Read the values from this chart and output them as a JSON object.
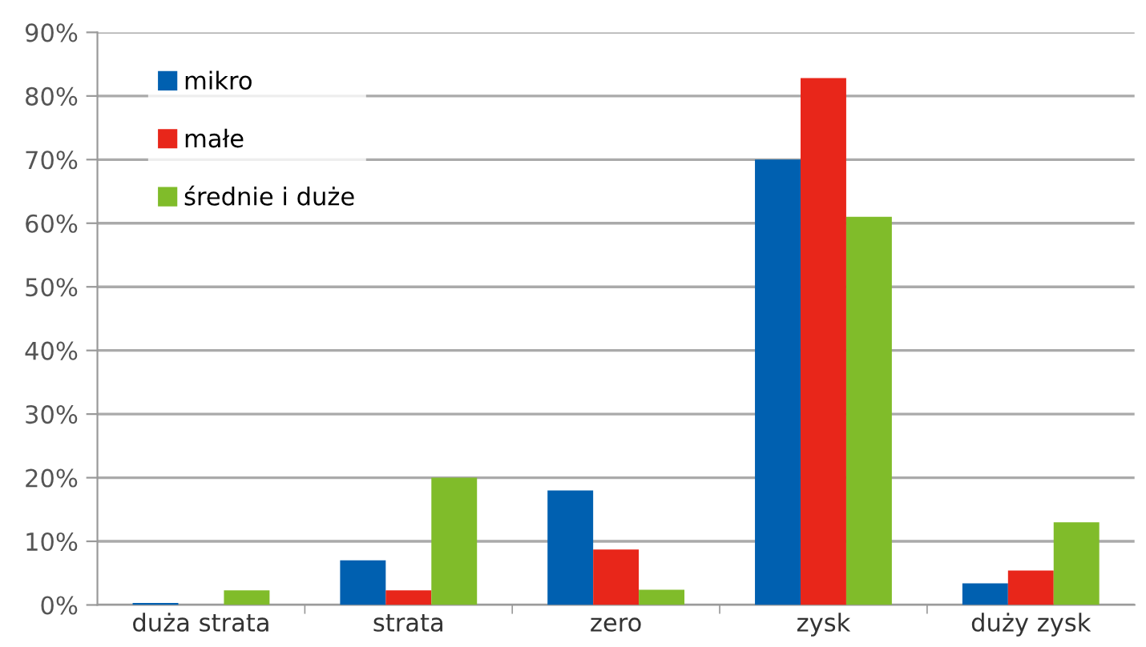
{
  "chart_data": {
    "type": "bar",
    "categories": [
      "duża strata",
      "strata",
      "zero",
      "zysk",
      "duży zysk"
    ],
    "series": [
      {
        "name": "mikro",
        "color": "#0060b0",
        "values": [
          0.3,
          7,
          18,
          70,
          3.4
        ]
      },
      {
        "name": "małe",
        "color": "#e8261a",
        "values": [
          0,
          2.3,
          8.7,
          82.8,
          5.4
        ]
      },
      {
        "name": "średnie i duże",
        "color": "#80bc2a",
        "values": [
          2.3,
          20,
          2.4,
          61,
          13
        ]
      }
    ],
    "ylim": [
      0,
      90
    ],
    "yticks": [
      {
        "value": 0,
        "label": "0%"
      },
      {
        "value": 10,
        "label": "10%"
      },
      {
        "value": 20,
        "label": "20%"
      },
      {
        "value": 30,
        "label": "30%"
      },
      {
        "value": 40,
        "label": "40%"
      },
      {
        "value": 50,
        "label": "50%"
      },
      {
        "value": 60,
        "label": "60%"
      },
      {
        "value": 70,
        "label": "70%"
      },
      {
        "value": 80,
        "label": "80%"
      },
      {
        "value": 90,
        "label": "90%"
      }
    ],
    "grid": "y",
    "legend": "top left"
  }
}
